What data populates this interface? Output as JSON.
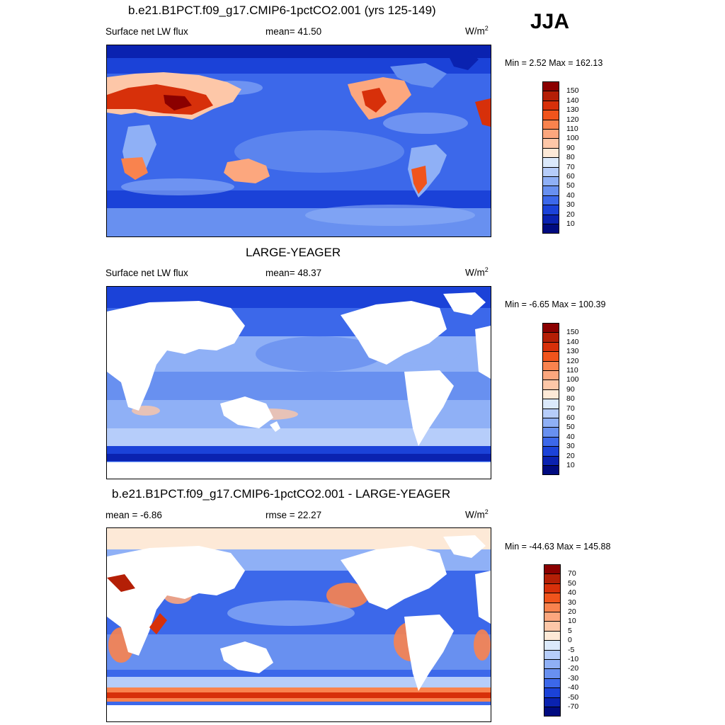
{
  "season": "JJA",
  "panels": [
    {
      "title": "b.e21.B1PCT.f09_g17.CMIP6-1pctCO2.001 (yrs 125-149)",
      "left_label": "Surface net LW flux",
      "center_label": "mean=  41.50",
      "units": "W/m",
      "units_sup": "2",
      "minmax": "Min =   2.52 Max = 162.13",
      "colorbar": {
        "labels": [
          "150",
          "140",
          "130",
          "120",
          "110",
          "100",
          "90",
          "80",
          "70",
          "60",
          "50",
          "40",
          "30",
          "20",
          "10"
        ],
        "colors": [
          "#8b0000",
          "#b41f06",
          "#d7300a",
          "#f0541c",
          "#f9834e",
          "#fca77e",
          "#fdc7a8",
          "#fde9d7",
          "#dbe9fb",
          "#b6cdfa",
          "#8fb0f6",
          "#6890f0",
          "#3c68ea",
          "#1b42d8",
          "#0a22b0",
          "#000b80"
        ]
      }
    },
    {
      "title": "LARGE-YEAGER",
      "left_label": "Surface net LW flux",
      "center_label": "mean=  48.37",
      "units": "W/m",
      "units_sup": "2",
      "minmax": "Min =  -6.65 Max = 100.39",
      "colorbar": {
        "labels": [
          "150",
          "140",
          "130",
          "120",
          "110",
          "100",
          "90",
          "80",
          "70",
          "60",
          "50",
          "40",
          "30",
          "20",
          "10"
        ],
        "colors": [
          "#8b0000",
          "#b41f06",
          "#d7300a",
          "#f0541c",
          "#f9834e",
          "#fca77e",
          "#fdc7a8",
          "#fde9d7",
          "#dbe9fb",
          "#b6cdfa",
          "#8fb0f6",
          "#6890f0",
          "#3c68ea",
          "#1b42d8",
          "#0a22b0",
          "#000b80"
        ]
      }
    },
    {
      "title": "b.e21.B1PCT.f09_g17.CMIP6-1pctCO2.001 - LARGE-YEAGER",
      "left_label": "mean =  -6.86",
      "center_label": "rmse =  22.27",
      "units": "W/m",
      "units_sup": "2",
      "minmax": "Min = -44.63 Max = 145.88",
      "colorbar": {
        "labels": [
          "70",
          "50",
          "40",
          "30",
          "20",
          "10",
          "5",
          "0",
          "-5",
          "-10",
          "-20",
          "-30",
          "-40",
          "-50",
          "-70"
        ],
        "colors": [
          "#8b0000",
          "#b41f06",
          "#d7300a",
          "#f0541c",
          "#f9834e",
          "#fca77e",
          "#fdc7a8",
          "#fde9d7",
          "#dbe9fb",
          "#b6cdfa",
          "#8fb0f6",
          "#6890f0",
          "#3c68ea",
          "#1b42d8",
          "#0a22b0",
          "#000b80"
        ]
      }
    }
  ]
}
